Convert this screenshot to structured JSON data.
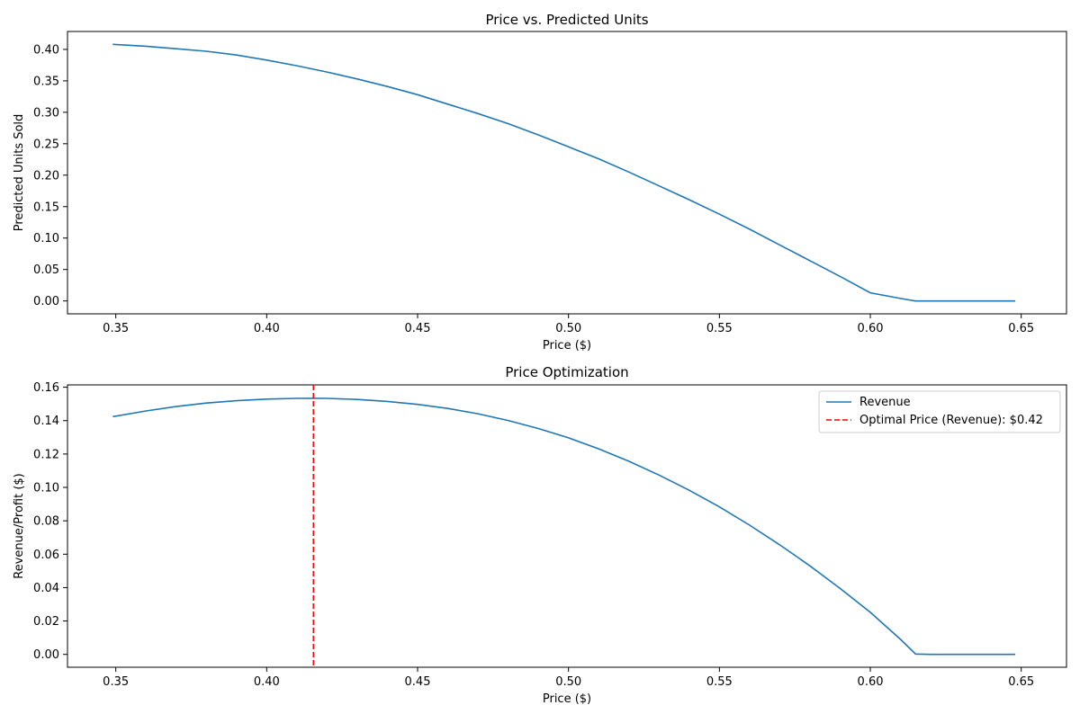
{
  "chart_data": [
    {
      "type": "line",
      "title": "Price vs. Predicted Units",
      "xlabel": "Price ($)",
      "ylabel": "Predicted Units Sold",
      "xlim": [
        0.334,
        0.665
      ],
      "ylim": [
        -0.0205,
        0.4285
      ],
      "xticks": [
        "0.35",
        "0.40",
        "0.45",
        "0.50",
        "0.55",
        "0.60",
        "0.65"
      ],
      "yticks": [
        "0.00",
        "0.05",
        "0.10",
        "0.15",
        "0.20",
        "0.25",
        "0.30",
        "0.35",
        "0.40"
      ],
      "grid": false,
      "series": [
        {
          "color": "#1f77b4",
          "x": [
            0.349,
            0.36,
            0.37,
            0.38,
            0.39,
            0.4,
            0.41,
            0.42,
            0.43,
            0.44,
            0.45,
            0.46,
            0.47,
            0.48,
            0.49,
            0.5,
            0.51,
            0.52,
            0.53,
            0.54,
            0.55,
            0.56,
            0.57,
            0.58,
            0.59,
            0.6,
            0.61,
            0.615,
            0.62,
            0.63,
            0.64,
            0.648
          ],
          "y": [
            0.408,
            0.405,
            0.401,
            0.397,
            0.391,
            0.383,
            0.374,
            0.364,
            0.353,
            0.341,
            0.328,
            0.313,
            0.298,
            0.282,
            0.264,
            0.245,
            0.226,
            0.205,
            0.183,
            0.161,
            0.138,
            0.114,
            0.089,
            0.064,
            0.039,
            0.013,
            0.004,
            0.0,
            0.0,
            0.0,
            0.0,
            0.0
          ]
        }
      ]
    },
    {
      "type": "line",
      "title": "Price Optimization",
      "xlabel": "Price ($)",
      "ylabel": "Revenue/Profit ($)",
      "xlim": [
        0.334,
        0.665
      ],
      "ylim": [
        -0.0077,
        0.1614
      ],
      "xticks": [
        "0.35",
        "0.40",
        "0.45",
        "0.50",
        "0.55",
        "0.60",
        "0.65"
      ],
      "yticks": [
        "0.00",
        "0.02",
        "0.04",
        "0.06",
        "0.08",
        "0.10",
        "0.12",
        "0.14",
        "0.16"
      ],
      "grid": false,
      "legend_position": "top-right",
      "series": [
        {
          "name": "Revenue",
          "color": "#1f77b4",
          "x": [
            0.349,
            0.36,
            0.37,
            0.38,
            0.39,
            0.4,
            0.41,
            0.415,
            0.42,
            0.43,
            0.44,
            0.45,
            0.46,
            0.47,
            0.48,
            0.49,
            0.5,
            0.51,
            0.52,
            0.53,
            0.54,
            0.55,
            0.56,
            0.57,
            0.58,
            0.59,
            0.6,
            0.61,
            0.615,
            0.62,
            0.63,
            0.64,
            0.648
          ],
          "y": [
            0.1424,
            0.1458,
            0.1484,
            0.1505,
            0.1519,
            0.1529,
            0.1533,
            0.1534,
            0.1533,
            0.1527,
            0.1515,
            0.1497,
            0.1473,
            0.1441,
            0.1401,
            0.1353,
            0.1297,
            0.1231,
            0.1157,
            0.1074,
            0.0983,
            0.0883,
            0.0774,
            0.0656,
            0.053,
            0.0395,
            0.0252,
            0.009,
            0.0002,
            0.0,
            0.0,
            0.0,
            0.0
          ]
        },
        {
          "name": "Optimal Price (Revenue): $0.42",
          "color": "#ff0000",
          "style": "dashed",
          "vline_x": 0.4155
        }
      ]
    }
  ]
}
